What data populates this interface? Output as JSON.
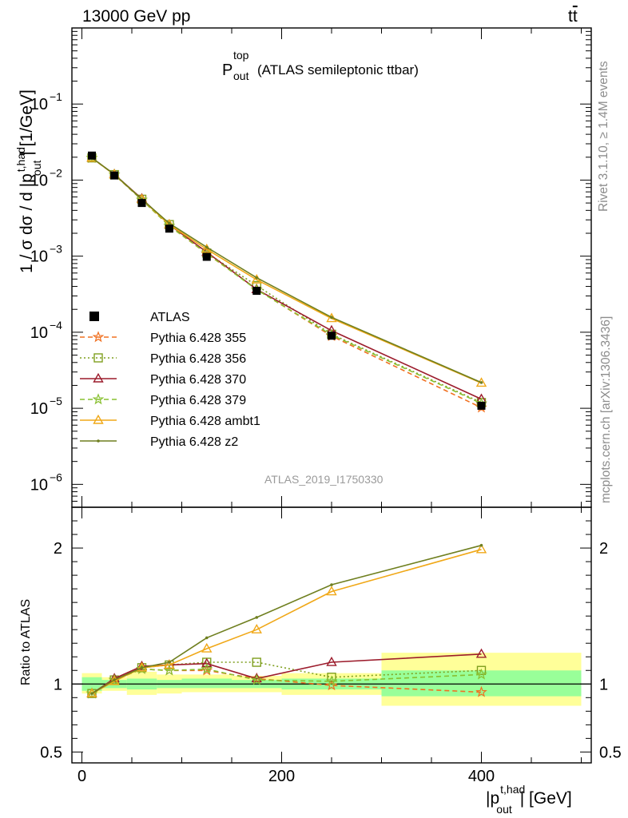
{
  "header": {
    "left": "13000 GeV pp",
    "right_main": "t",
    "right_bar": "t"
  },
  "annotations": {
    "title_main": "P",
    "title_sup": "top",
    "title_sub": "out",
    "title_rest": "(ATLAS semileptonic ttbar)",
    "watermark": "ATLAS_2019_I1750330",
    "rivet": "Rivet 3.1.10, ≥ 1.4M events",
    "mcplots": "mcplots.cern.ch [arXiv:1306.3436]"
  },
  "axes": {
    "y_main_label_prefix": "1 / σ dσ / d |p",
    "y_main_label_sup": "t,had",
    "y_main_label_sub": "out",
    "y_main_label_suffix": "| [1/GeV]",
    "y_ratio_label": "Ratio to ATLAS",
    "x_label_prefix": "|p",
    "x_label_sup": "t,had",
    "x_label_sub": "out",
    "x_label_suffix": "| [GeV]",
    "x_ticks": [
      "0",
      "200",
      "400"
    ],
    "y_main_ticks": [
      {
        "base": "10",
        "exp": "−1"
      },
      {
        "base": "10",
        "exp": "−2"
      },
      {
        "base": "10",
        "exp": "−3"
      },
      {
        "base": "10",
        "exp": "−4"
      },
      {
        "base": "10",
        "exp": "−5"
      },
      {
        "base": "10",
        "exp": "−6"
      }
    ],
    "y_ratio_ticks": [
      "2",
      "1",
      "0.5"
    ]
  },
  "chart_data": {
    "type": "line",
    "x": [
      10,
      32.5,
      60,
      87.5,
      125,
      175,
      250,
      400
    ],
    "bin_edges": [
      0,
      20,
      45,
      75,
      100,
      150,
      200,
      300,
      500
    ],
    "xlim": [
      -10,
      510
    ],
    "main": {
      "yscale": "log",
      "ylim": [
        5e-07,
        1.0
      ],
      "data": {
        "name": "ATLAS",
        "values": [
          0.021,
          0.0115,
          0.005,
          0.0023,
          0.00098,
          0.00035,
          9e-05,
          1.08e-05
        ]
      },
      "series": [
        {
          "name": "Pythia 6.428 355",
          "color": "#f07020",
          "dash": "6,4",
          "marker": "star",
          "values": [
            0.0195,
            0.0118,
            0.0055,
            0.0025,
            0.00108,
            0.000365,
            8.9e-05,
            1.02e-05
          ]
        },
        {
          "name": "Pythia 6.428 356",
          "color": "#7f9f1f",
          "dash": "2,3",
          "marker": "square",
          "values": [
            0.0196,
            0.0118,
            0.0056,
            0.0026,
            0.0011,
            0.00041,
            9.4e-05,
            1.19e-05
          ]
        },
        {
          "name": "Pythia 6.428 370",
          "color": "#9c1c2c",
          "dash": "",
          "marker": "triangle",
          "values": [
            0.0196,
            0.0119,
            0.0057,
            0.0026,
            0.00113,
            0.000365,
            0.000105,
            1.32e-05
          ]
        },
        {
          "name": "Pythia 6.428 379",
          "color": "#88c030",
          "dash": "6,4",
          "marker": "star",
          "values": [
            0.0196,
            0.0118,
            0.0055,
            0.0025,
            0.00109,
            0.000362,
            9.2e-05,
            1.16e-05
          ]
        },
        {
          "name": "Pythia 6.428 ambt1",
          "color": "#f0a818",
          "dash": "",
          "marker": "triangle",
          "values": [
            0.0196,
            0.0118,
            0.0056,
            0.0026,
            0.00123,
            0.00049,
            0.000152,
            2.15e-05
          ]
        },
        {
          "name": "Pythia 6.428 z2",
          "color": "#6f7f1f",
          "dash": "",
          "marker": "dot",
          "values": [
            0.0196,
            0.0119,
            0.0056,
            0.0027,
            0.00131,
            0.00052,
            0.000157,
            2.18e-05
          ]
        }
      ]
    },
    "ratio": {
      "ylim": [
        0.42,
        2.3
      ],
      "band_inner": [
        [
          0.95,
          1.05
        ],
        [
          0.97,
          1.03
        ],
        [
          0.96,
          1.04
        ],
        [
          0.97,
          1.03
        ],
        [
          0.97,
          1.04
        ],
        [
          0.97,
          1.03
        ],
        [
          0.96,
          1.04
        ],
        [
          0.91,
          1.1
        ]
      ],
      "band_outer": [
        [
          0.93,
          1.08
        ],
        [
          0.95,
          1.05
        ],
        [
          0.92,
          1.09
        ],
        [
          0.93,
          1.07
        ],
        [
          0.94,
          1.07
        ],
        [
          0.94,
          1.06
        ],
        [
          0.92,
          1.08
        ],
        [
          0.84,
          1.23
        ]
      ],
      "series": [
        {
          "name": "Pythia 6.428 355",
          "values": [
            0.93,
            1.03,
            1.11,
            1.1,
            1.1,
            1.04,
            0.99,
            0.94
          ]
        },
        {
          "name": "Pythia 6.428 356",
          "values": [
            0.93,
            1.03,
            1.12,
            1.14,
            1.16,
            1.16,
            1.05,
            1.1
          ]
        },
        {
          "name": "Pythia 6.428 370",
          "values": [
            0.93,
            1.04,
            1.13,
            1.14,
            1.15,
            1.04,
            1.16,
            1.22
          ]
        },
        {
          "name": "Pythia 6.428 379",
          "values": [
            0.93,
            1.03,
            1.11,
            1.1,
            1.11,
            1.03,
            1.02,
            1.07
          ]
        },
        {
          "name": "Pythia 6.428 ambt1",
          "values": [
            0.93,
            1.02,
            1.12,
            1.14,
            1.26,
            1.4,
            1.68,
            1.99
          ]
        },
        {
          "name": "Pythia 6.428 z2",
          "values": [
            0.93,
            1.03,
            1.12,
            1.16,
            1.34,
            1.49,
            1.73,
            2.02
          ]
        }
      ]
    }
  }
}
